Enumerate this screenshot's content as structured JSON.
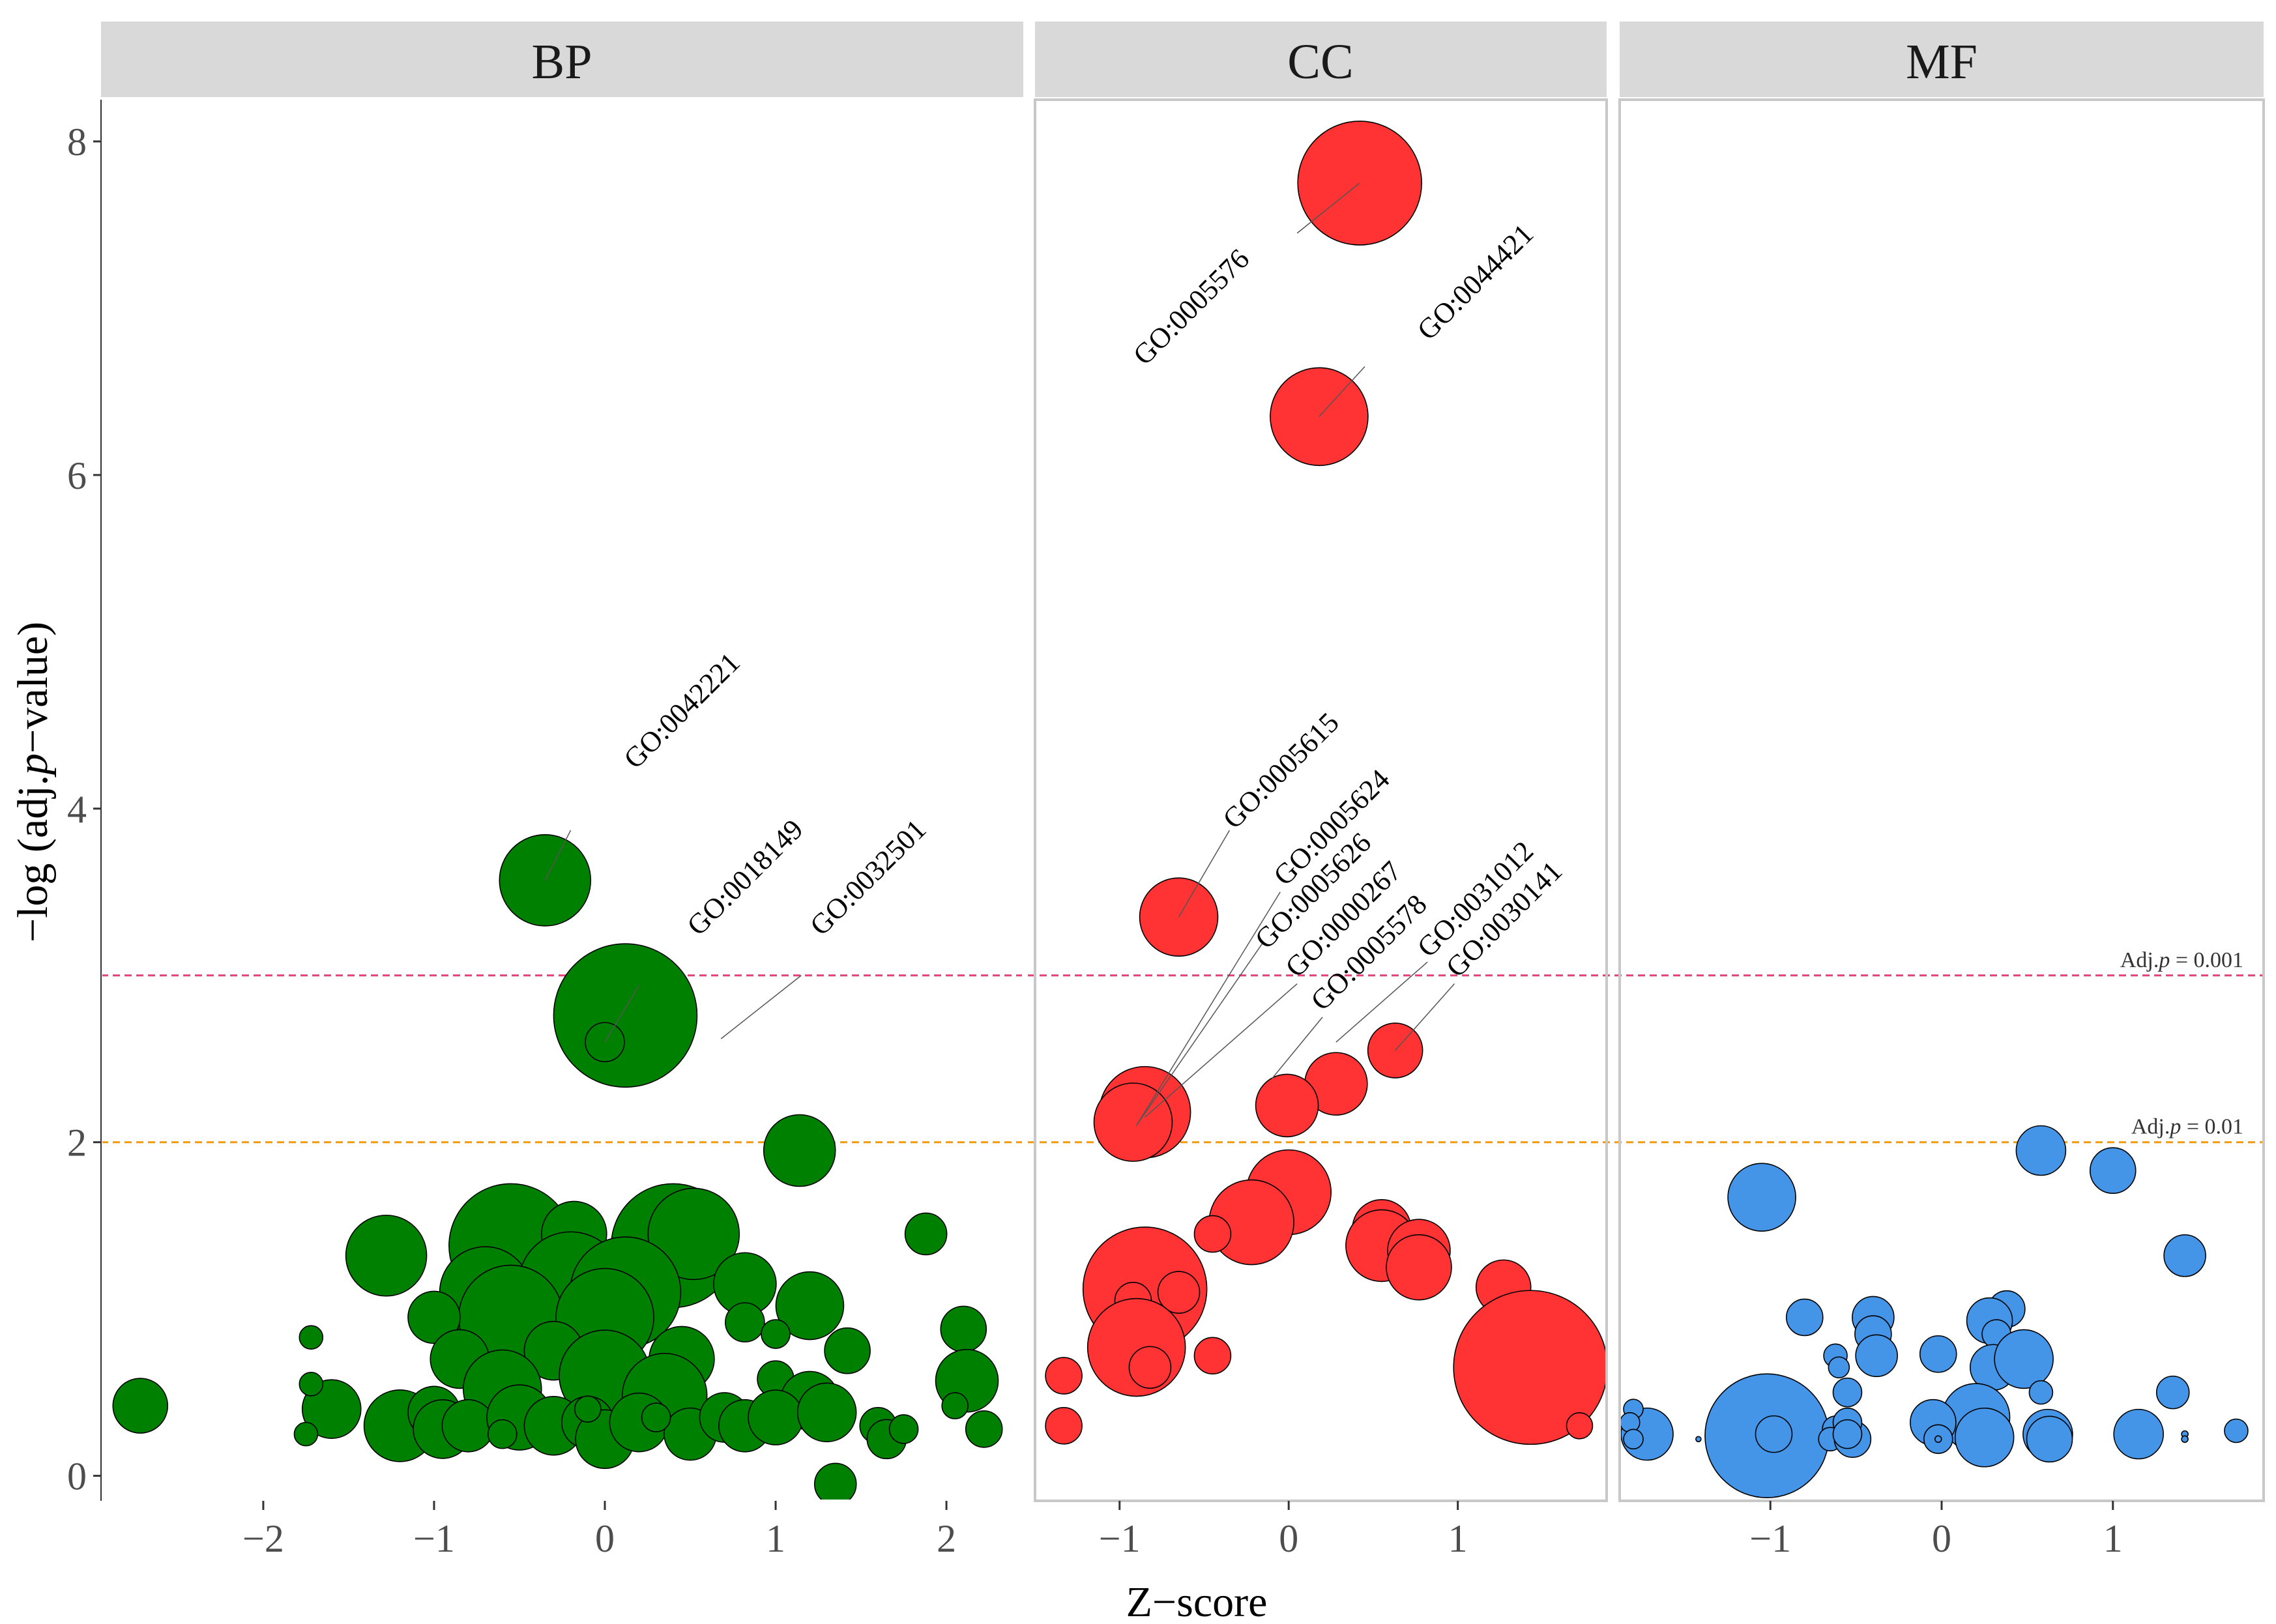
{
  "chart_data": {
    "type": "scatter",
    "xlabel": "Z−score",
    "ylabel_prefix": "−log (adj.",
    "ylabel_italic": "p",
    "ylabel_suffix": "−value)",
    "ylim": [
      -0.15,
      8.25
    ],
    "y_ticks": [
      0,
      2,
      4,
      6,
      8
    ],
    "thresholds": [
      {
        "name": "p001",
        "y": 3.0,
        "color": "#e6407a",
        "label_prefix": "Adj.",
        "label_italic": "p",
        "label_suffix": " = 0.001"
      },
      {
        "name": "p01",
        "y": 2.0,
        "color": "#f59a00",
        "label_prefix": "Adj.",
        "label_italic": "p",
        "label_suffix": " = 0.01"
      }
    ],
    "panels": [
      {
        "name": "BP",
        "title": "BP",
        "color": "#008000",
        "xlim": [
          -2.95,
          2.45
        ],
        "x_ticks": [
          -2,
          -1,
          0,
          1,
          2
        ],
        "x_tick_labels": [
          "−2",
          "−1",
          "0",
          "1",
          "2"
        ],
        "points": [
          {
            "x": -0.35,
            "y": 3.57,
            "r": 70
          },
          {
            "x": 0.12,
            "y": 2.76,
            "r": 110
          },
          {
            "x": 0.0,
            "y": 2.6,
            "r": 30
          },
          {
            "x": 1.14,
            "y": 1.95,
            "r": 55
          },
          {
            "x": -1.28,
            "y": 1.32,
            "r": 62
          },
          {
            "x": -0.55,
            "y": 1.38,
            "r": 95
          },
          {
            "x": -0.18,
            "y": 1.45,
            "r": 50
          },
          {
            "x": 0.4,
            "y": 1.38,
            "r": 95
          },
          {
            "x": 0.52,
            "y": 1.45,
            "r": 70
          },
          {
            "x": -0.7,
            "y": 1.1,
            "r": 70
          },
          {
            "x": -0.2,
            "y": 1.15,
            "r": 80
          },
          {
            "x": 0.12,
            "y": 1.1,
            "r": 85
          },
          {
            "x": 0.82,
            "y": 1.15,
            "r": 48
          },
          {
            "x": 1.88,
            "y": 1.45,
            "r": 32
          },
          {
            "x": 1.2,
            "y": 1.02,
            "r": 52
          },
          {
            "x": -0.55,
            "y": 0.95,
            "r": 80
          },
          {
            "x": 0.0,
            "y": 0.95,
            "r": 75
          },
          {
            "x": -1.0,
            "y": 0.95,
            "r": 40
          },
          {
            "x": 0.82,
            "y": 0.92,
            "r": 30
          },
          {
            "x": 1.0,
            "y": 0.85,
            "r": 22
          },
          {
            "x": 2.1,
            "y": 0.88,
            "r": 35
          },
          {
            "x": 1.42,
            "y": 0.75,
            "r": 35
          },
          {
            "x": -1.72,
            "y": 0.83,
            "r": 18
          },
          {
            "x": -0.3,
            "y": 0.75,
            "r": 45
          },
          {
            "x": 0.45,
            "y": 0.7,
            "r": 50
          },
          {
            "x": -0.85,
            "y": 0.7,
            "r": 45
          },
          {
            "x": 0.0,
            "y": 0.6,
            "r": 70
          },
          {
            "x": -0.6,
            "y": 0.52,
            "r": 60
          },
          {
            "x": 0.35,
            "y": 0.48,
            "r": 65
          },
          {
            "x": 2.12,
            "y": 0.57,
            "r": 48
          },
          {
            "x": 1.0,
            "y": 0.58,
            "r": 28
          },
          {
            "x": 1.2,
            "y": 0.45,
            "r": 45
          },
          {
            "x": -2.72,
            "y": 0.42,
            "r": 42
          },
          {
            "x": -1.6,
            "y": 0.4,
            "r": 45
          },
          {
            "x": -1.72,
            "y": 0.55,
            "r": 18
          },
          {
            "x": -1.75,
            "y": 0.25,
            "r": 18
          },
          {
            "x": -1.25,
            "y": 0.28,
            "r": 30
          },
          {
            "x": -1.2,
            "y": 0.3,
            "r": 55
          },
          {
            "x": -1.0,
            "y": 0.38,
            "r": 40
          },
          {
            "x": -0.95,
            "y": 0.28,
            "r": 45
          },
          {
            "x": -0.8,
            "y": 0.3,
            "r": 40
          },
          {
            "x": -0.5,
            "y": 0.35,
            "r": 50
          },
          {
            "x": -0.3,
            "y": 0.3,
            "r": 45
          },
          {
            "x": -0.1,
            "y": 0.32,
            "r": 40
          },
          {
            "x": 0.0,
            "y": 0.22,
            "r": 45
          },
          {
            "x": 0.2,
            "y": 0.32,
            "r": 45
          },
          {
            "x": 0.5,
            "y": 0.25,
            "r": 40
          },
          {
            "x": 0.7,
            "y": 0.35,
            "r": 38
          },
          {
            "x": 0.82,
            "y": 0.3,
            "r": 40
          },
          {
            "x": 1.0,
            "y": 0.35,
            "r": 42
          },
          {
            "x": 1.3,
            "y": 0.38,
            "r": 45
          },
          {
            "x": 1.6,
            "y": 0.3,
            "r": 28
          },
          {
            "x": 1.65,
            "y": 0.22,
            "r": 30
          },
          {
            "x": 1.75,
            "y": 0.28,
            "r": 22
          },
          {
            "x": 2.05,
            "y": 0.42,
            "r": 20
          },
          {
            "x": 2.22,
            "y": 0.28,
            "r": 28
          },
          {
            "x": 1.35,
            "y": -0.05,
            "r": 32
          },
          {
            "x": -0.1,
            "y": 0.4,
            "r": 20
          },
          {
            "x": 0.3,
            "y": 0.35,
            "r": 22
          },
          {
            "x": -0.6,
            "y": 0.25,
            "r": 22
          }
        ],
        "labels": [
          {
            "text": "GO:0042221",
            "px": -0.35,
            "py": 3.57,
            "ax": -0.2,
            "ay": 3.87,
            "tx": 0.18,
            "ty": 4.23
          },
          {
            "text": "GO:0018149",
            "px": 0.0,
            "py": 2.6,
            "ax": 0.2,
            "ay": 2.94,
            "tx": 0.55,
            "ty": 3.23
          },
          {
            "text": "GO:0032501",
            "px": 0.68,
            "py": 2.62,
            "ax": 1.15,
            "ay": 3.0,
            "tx": 1.27,
            "ty": 3.23
          }
        ]
      },
      {
        "name": "CC",
        "title": "CC",
        "color": "#ff3333",
        "xlim": [
          -1.5,
          1.88
        ],
        "x_ticks": [
          -1,
          0,
          1
        ],
        "x_tick_labels": [
          "−1",
          "0",
          "1"
        ],
        "points": [
          {
            "x": 0.42,
            "y": 7.75,
            "r": 95
          },
          {
            "x": 0.18,
            "y": 6.35,
            "r": 75
          },
          {
            "x": -0.65,
            "y": 3.35,
            "r": 60
          },
          {
            "x": 0.63,
            "y": 2.55,
            "r": 42
          },
          {
            "x": 0.28,
            "y": 2.35,
            "r": 48
          },
          {
            "x": -0.01,
            "y": 2.22,
            "r": 48
          },
          {
            "x": -0.85,
            "y": 2.18,
            "r": 70
          },
          {
            "x": -0.92,
            "y": 2.12,
            "r": 60
          },
          {
            "x": 0.0,
            "y": 1.7,
            "r": 65
          },
          {
            "x": -0.22,
            "y": 1.52,
            "r": 65
          },
          {
            "x": -0.45,
            "y": 1.45,
            "r": 28
          },
          {
            "x": 0.55,
            "y": 1.48,
            "r": 45
          },
          {
            "x": 0.55,
            "y": 1.38,
            "r": 55
          },
          {
            "x": 0.77,
            "y": 1.35,
            "r": 48
          },
          {
            "x": 0.77,
            "y": 1.25,
            "r": 50
          },
          {
            "x": 1.27,
            "y": 1.13,
            "r": 42
          },
          {
            "x": -0.85,
            "y": 1.12,
            "r": 95
          },
          {
            "x": -0.92,
            "y": 1.05,
            "r": 28
          },
          {
            "x": -0.65,
            "y": 1.1,
            "r": 32
          },
          {
            "x": -0.9,
            "y": 0.77,
            "r": 75
          },
          {
            "x": -0.82,
            "y": 0.65,
            "r": 32
          },
          {
            "x": -0.45,
            "y": 0.72,
            "r": 28
          },
          {
            "x": -1.33,
            "y": 0.6,
            "r": 28
          },
          {
            "x": -1.33,
            "y": 0.3,
            "r": 28
          },
          {
            "x": 1.43,
            "y": 0.65,
            "r": 118
          },
          {
            "x": 1.72,
            "y": 0.3,
            "r": 20
          }
        ],
        "labels": [
          {
            "text": "GO:0005576",
            "px": 0.42,
            "py": 7.75,
            "ax": 0.05,
            "ay": 7.45,
            "tx": -0.85,
            "ty": 6.65
          },
          {
            "text": "GO:0044421",
            "px": 0.18,
            "py": 6.35,
            "ax": 0.45,
            "ay": 6.65,
            "tx": 0.83,
            "ty": 6.8
          },
          {
            "text": "GO:0005615",
            "px": -0.65,
            "py": 3.35,
            "ax": -0.35,
            "ay": 3.87,
            "tx": -0.32,
            "ty": 3.87
          },
          {
            "text": "GO:0005624",
            "px": -0.9,
            "py": 2.1,
            "ax": -0.05,
            "ay": 3.5,
            "tx": -0.02,
            "ty": 3.53
          },
          {
            "text": "GO:0005626",
            "px": -0.9,
            "py": 2.1,
            "ax": -0.15,
            "ay": 3.2,
            "tx": -0.13,
            "ty": 3.15
          },
          {
            "text": "GO:0000267",
            "px": -0.85,
            "py": 2.15,
            "ax": 0.05,
            "ay": 2.95,
            "tx": 0.05,
            "ty": 2.98
          },
          {
            "text": "GO:0005578",
            "px": -0.1,
            "py": 2.38,
            "ax": 0.2,
            "ay": 2.75,
            "tx": 0.2,
            "ty": 2.78
          },
          {
            "text": "GO:0031012",
            "px": 0.28,
            "py": 2.6,
            "ax": 0.82,
            "ay": 3.08,
            "tx": 0.83,
            "ty": 3.1
          },
          {
            "text": "GO:0030141",
            "px": 0.63,
            "py": 2.55,
            "ax": 0.98,
            "ay": 2.95,
            "tx": 1.0,
            "ty": 2.98
          }
        ]
      },
      {
        "name": "MF",
        "title": "MF",
        "color": "#4494e8",
        "xlim": [
          -1.88,
          1.88
        ],
        "x_ticks": [
          -1,
          0,
          1
        ],
        "x_tick_labels": [
          "−1",
          "0",
          "1"
        ],
        "points": [
          {
            "x": -1.02,
            "y": 0.24,
            "r": 95
          },
          {
            "x": -1.05,
            "y": 1.67,
            "r": 52
          },
          {
            "x": 0.58,
            "y": 1.95,
            "r": 38
          },
          {
            "x": 1.0,
            "y": 1.83,
            "r": 35
          },
          {
            "x": 1.42,
            "y": 1.32,
            "r": 32
          },
          {
            "x": -0.8,
            "y": 0.95,
            "r": 28
          },
          {
            "x": -0.4,
            "y": 0.95,
            "r": 32
          },
          {
            "x": -0.4,
            "y": 0.85,
            "r": 28
          },
          {
            "x": -0.38,
            "y": 0.72,
            "r": 32
          },
          {
            "x": -0.62,
            "y": 0.72,
            "r": 18
          },
          {
            "x": -0.6,
            "y": 0.65,
            "r": 16
          },
          {
            "x": 0.38,
            "y": 1.0,
            "r": 28
          },
          {
            "x": 0.28,
            "y": 0.93,
            "r": 35
          },
          {
            "x": 0.32,
            "y": 0.85,
            "r": 22
          },
          {
            "x": -0.02,
            "y": 0.73,
            "r": 28
          },
          {
            "x": 0.3,
            "y": 0.65,
            "r": 35
          },
          {
            "x": 0.48,
            "y": 0.7,
            "r": 45
          },
          {
            "x": 0.58,
            "y": 0.5,
            "r": 18
          },
          {
            "x": -0.55,
            "y": 0.5,
            "r": 22
          },
          {
            "x": 0.2,
            "y": 0.35,
            "r": 52
          },
          {
            "x": 0.25,
            "y": 0.23,
            "r": 45
          },
          {
            "x": -0.05,
            "y": 0.32,
            "r": 35
          },
          {
            "x": -0.02,
            "y": 0.22,
            "r": 22
          },
          {
            "x": -0.02,
            "y": 0.22,
            "r": 5
          },
          {
            "x": -1.72,
            "y": 0.25,
            "r": 40
          },
          {
            "x": -1.8,
            "y": 0.4,
            "r": 15
          },
          {
            "x": -1.82,
            "y": 0.32,
            "r": 15
          },
          {
            "x": -1.8,
            "y": 0.22,
            "r": 15
          },
          {
            "x": -1.42,
            "y": 0.22,
            "r": 4
          },
          {
            "x": -0.62,
            "y": 0.28,
            "r": 20
          },
          {
            "x": -0.65,
            "y": 0.22,
            "r": 18
          },
          {
            "x": -0.52,
            "y": 0.22,
            "r": 28
          },
          {
            "x": -0.55,
            "y": 0.32,
            "r": 22
          },
          {
            "x": -0.55,
            "y": 0.25,
            "r": 22
          },
          {
            "x": 0.62,
            "y": 0.25,
            "r": 38
          },
          {
            "x": 0.63,
            "y": 0.22,
            "r": 35
          },
          {
            "x": 1.15,
            "y": 0.25,
            "r": 38
          },
          {
            "x": 1.35,
            "y": 0.5,
            "r": 25
          },
          {
            "x": 1.42,
            "y": 0.25,
            "r": 5
          },
          {
            "x": 1.42,
            "y": 0.22,
            "r": 5
          },
          {
            "x": 1.72,
            "y": 0.27,
            "r": 18
          },
          {
            "x": -0.98,
            "y": 0.25,
            "r": 28
          }
        ],
        "labels": []
      }
    ]
  }
}
